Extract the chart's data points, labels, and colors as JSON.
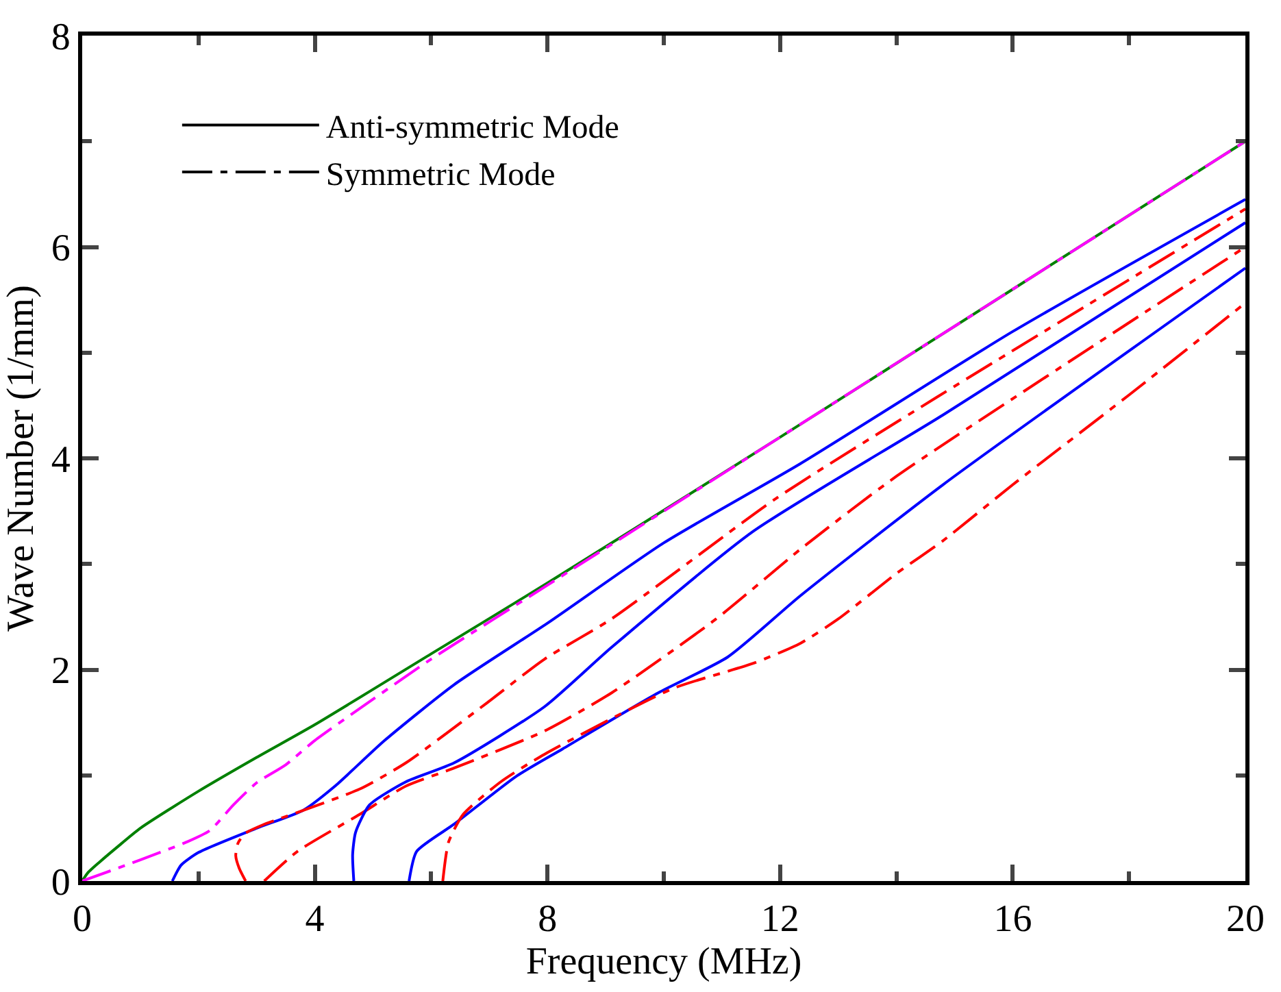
{
  "chart_data": {
    "type": "line",
    "xlabel": "Frequency (MHz)",
    "ylabel": "Wave Number (1/mm)",
    "xlim": [
      0,
      20
    ],
    "ylim": [
      0,
      8
    ],
    "xticks": [
      0,
      {
        "value": 2,
        "label": null
      },
      4,
      {
        "value": 6,
        "label": null
      },
      8,
      {
        "value": 10,
        "label": null
      },
      12,
      {
        "value": 14,
        "label": null
      },
      16,
      {
        "value": 18,
        "label": null
      },
      20
    ],
    "yticks": [
      0,
      {
        "value": 1,
        "label": null
      },
      2,
      {
        "value": 3,
        "label": null
      },
      4,
      {
        "value": 5,
        "label": null
      },
      6,
      {
        "value": 7,
        "label": null
      },
      8
    ],
    "legend": "top left",
    "marker": "none",
    "series": [
      {
        "name": "Anti-symmetric Mode",
        "color": "#000000",
        "line_style": "solid",
        "values": [
          null
        ]
      },
      {
        "name": "Symmetric Mode",
        "color": "#000000",
        "line_style": "dashed",
        "values": [
          null
        ]
      },
      {
        "color": "#008000",
        "line_style": "solid",
        "x": [
          0,
          0.1,
          0.3,
          0.6,
          1,
          2,
          3,
          4,
          6,
          8,
          12,
          16,
          20
        ],
        "values": [
          0,
          0.08,
          0.18,
          0.32,
          0.5,
          0.85,
          1.17,
          1.48,
          2.15,
          2.82,
          4.2,
          5.6,
          7.0
        ]
      },
      {
        "color": "#ff00ff",
        "line_style": "dashed",
        "x": [
          0,
          1,
          1.8,
          2.2,
          2.6,
          3,
          3.5,
          4,
          5,
          6,
          8,
          12,
          16,
          20
        ],
        "values": [
          0,
          0.2,
          0.37,
          0.48,
          0.72,
          0.93,
          1.1,
          1.33,
          1.72,
          2.1,
          2.8,
          4.2,
          5.6,
          7.0
        ]
      },
      {
        "color": "#0000ff",
        "line_style": "solid",
        "x": [
          1.55,
          1.7,
          2,
          3,
          3.8,
          4.35,
          5.2,
          6.4,
          8,
          10,
          12.35,
          16,
          20
        ],
        "values": [
          0,
          0.15,
          0.27,
          0.5,
          0.67,
          0.9,
          1.33,
          1.86,
          2.44,
          3.2,
          3.95,
          5.2,
          6.45
        ]
      },
      {
        "color": "#ff0000",
        "line_style": "dashed",
        "x": [
          2.81,
          2.7,
          2.64,
          2.68,
          2.8,
          3.1,
          3.4,
          4.77,
          5.57,
          6.97,
          7.95,
          9.1,
          11.93,
          14.7,
          20
        ],
        "values": [
          0,
          0.12,
          0.24,
          0.36,
          0.45,
          0.53,
          0.59,
          0.87,
          1.12,
          1.69,
          2.1,
          2.48,
          3.62,
          4.58,
          6.36
        ]
      },
      {
        "color": "#ff0000",
        "line_style": "dashed",
        "x": [
          3.13,
          3.7,
          4.77,
          5.57,
          6.4,
          7.95,
          9.1,
          10.9,
          12.35,
          14,
          20
        ],
        "values": [
          0,
          0.28,
          0.63,
          0.9,
          1.07,
          1.42,
          1.78,
          2.48,
          3.14,
          3.83,
          6.0
        ]
      },
      {
        "color": "#0000ff",
        "line_style": "solid",
        "x": [
          4.67,
          4.65,
          4.7,
          4.94,
          5.57,
          6.4,
          7.95,
          9.1,
          11.54,
          14.8,
          20
        ],
        "values": [
          0,
          0.25,
          0.46,
          0.72,
          0.94,
          1.12,
          1.65,
          2.21,
          3.31,
          4.41,
          6.23
        ]
      },
      {
        "color": "#0000ff",
        "line_style": "solid",
        "x": [
          5.62,
          5.75,
          6.4,
          7.46,
          8.26,
          9.9,
          11.1,
          12.35,
          14.8,
          20
        ],
        "values": [
          0,
          0.28,
          0.54,
          0.99,
          1.25,
          1.78,
          2.12,
          2.7,
          3.75,
          5.8
        ]
      },
      {
        "color": "#ff0000",
        "line_style": "dashed",
        "x": [
          6.2,
          6.3,
          6.55,
          7.2,
          7.95,
          10.15,
          11.54,
          12.35,
          13,
          14,
          14.8,
          16,
          18,
          20
        ],
        "values": [
          0,
          0.37,
          0.63,
          0.94,
          1.2,
          1.82,
          2.06,
          2.25,
          2.48,
          2.91,
          3.22,
          3.75,
          4.6,
          5.47
        ]
      }
    ]
  }
}
